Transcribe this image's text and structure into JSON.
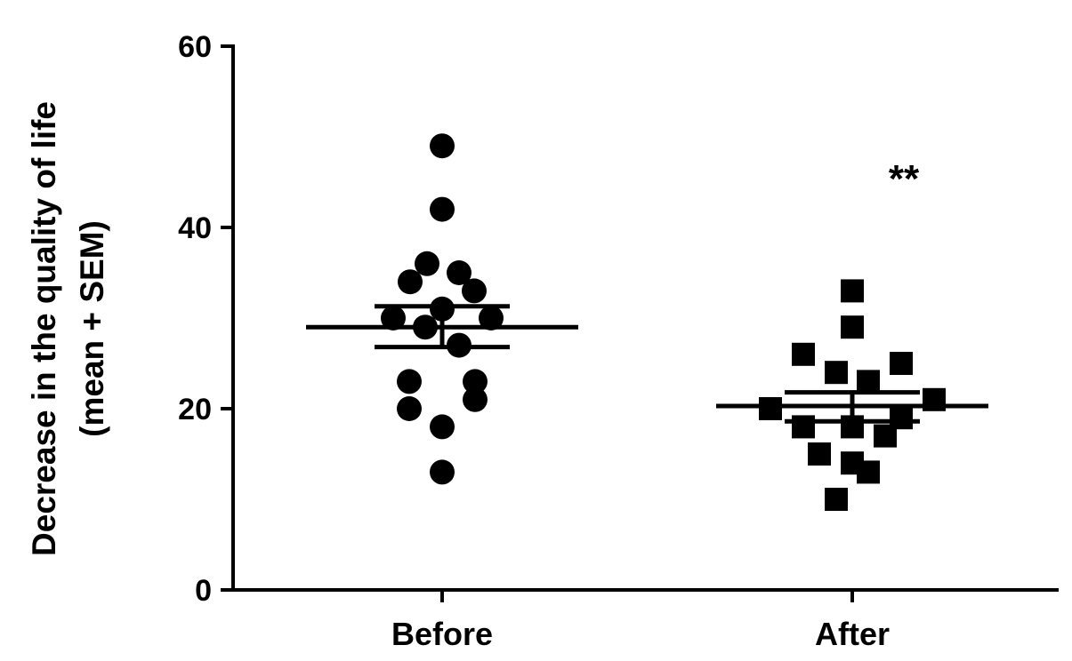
{
  "chart_data": {
    "type": "scatter",
    "ylabel_line1": "Decrease in the quality of life",
    "ylabel_line2": "(mean + SEM)",
    "ylim": [
      0,
      60
    ],
    "yticks": [
      "0",
      "20",
      "40",
      "60"
    ],
    "categories": [
      "Before",
      "After"
    ],
    "series": [
      {
        "category": "Before",
        "marker": "circle",
        "values": [
          49,
          42,
          36,
          35,
          34,
          33,
          31,
          30,
          30,
          29,
          27,
          23,
          23,
          21,
          20,
          18,
          13
        ],
        "mean": 29.0,
        "sem_upper": 31.3,
        "sem_lower": 26.8
      },
      {
        "category": "After",
        "marker": "square",
        "values": [
          33,
          29,
          26,
          25,
          24,
          23,
          21,
          20,
          19,
          18,
          18,
          17,
          15,
          14,
          13,
          10
        ],
        "mean": 20.3,
        "sem_upper": 21.8,
        "sem_lower": 18.6
      }
    ],
    "annotation": "**"
  }
}
